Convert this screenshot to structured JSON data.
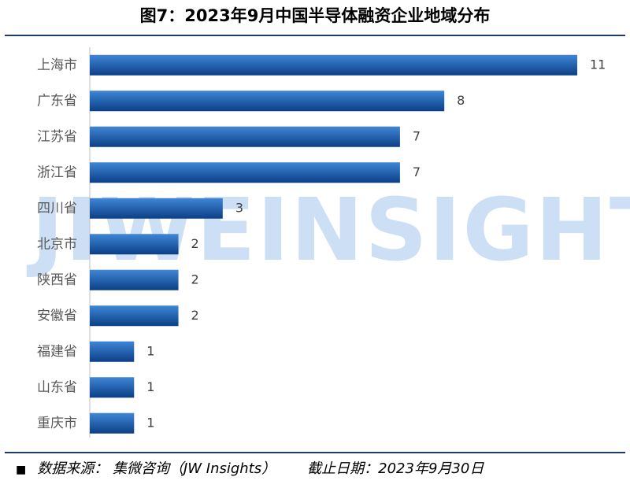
{
  "chart_data": {
    "type": "bar",
    "orientation": "horizontal",
    "title": "图7：2023年9月中国半导体融资企业地域分布",
    "categories": [
      "上海市",
      "广东省",
      "江苏省",
      "浙江省",
      "四川省",
      "北京市",
      "陕西省",
      "安徽省",
      "福建省",
      "山东省",
      "重庆市"
    ],
    "values": [
      11,
      8,
      7,
      7,
      3,
      2,
      2,
      2,
      1,
      1,
      1
    ],
    "xlim": [
      0,
      11
    ],
    "xlabel": "",
    "ylabel": "",
    "grid": false,
    "legend": "none",
    "bar_color_light": "#3f86d6",
    "bar_color_dark": "#0b3f86"
  },
  "watermark": "JIWEINSIGHTS",
  "footer": {
    "bullet": "■",
    "source": "数据来源： 集微咨询（JW Insights）",
    "cutoff": "截止日期：2023年9月30日"
  }
}
